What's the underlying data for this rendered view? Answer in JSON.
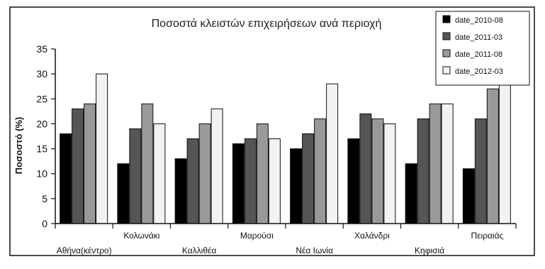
{
  "chart_data": {
    "type": "bar",
    "title": "Ποσοστά κλειστών επιχειρήσεων ανά περιοχή",
    "xlabel": "",
    "ylabel": "Ποσοστό (%)",
    "ylim": [
      0,
      35
    ],
    "yticks": [
      "0",
      "5",
      "10",
      "15",
      "20",
      "25",
      "30",
      "35"
    ],
    "grid": false,
    "legend_position": "top-right",
    "categories": [
      "Αθήνα(κέντρο)",
      "Κολωνάκι",
      "Καλλιθέα",
      "Μαρούσι",
      "Νέα Ιωνία",
      "Χαλάνδρι",
      "Κηφισιά",
      "Πειραιάς"
    ],
    "series": [
      {
        "name": "date_2010-08",
        "color": "#000000",
        "values": [
          18,
          12,
          13,
          16,
          15,
          17,
          12,
          11
        ]
      },
      {
        "name": "date_2011-03",
        "color": "#555555",
        "values": [
          23,
          19,
          17,
          17,
          18,
          22,
          21,
          21
        ]
      },
      {
        "name": "date_2011-08",
        "color": "#999999",
        "values": [
          24,
          24,
          20,
          20,
          21,
          21,
          24,
          27
        ]
      },
      {
        "name": "date_2012-03",
        "color": "#f2f2f2",
        "values": [
          30,
          20,
          23,
          17,
          28,
          20,
          24,
          28
        ]
      }
    ]
  }
}
